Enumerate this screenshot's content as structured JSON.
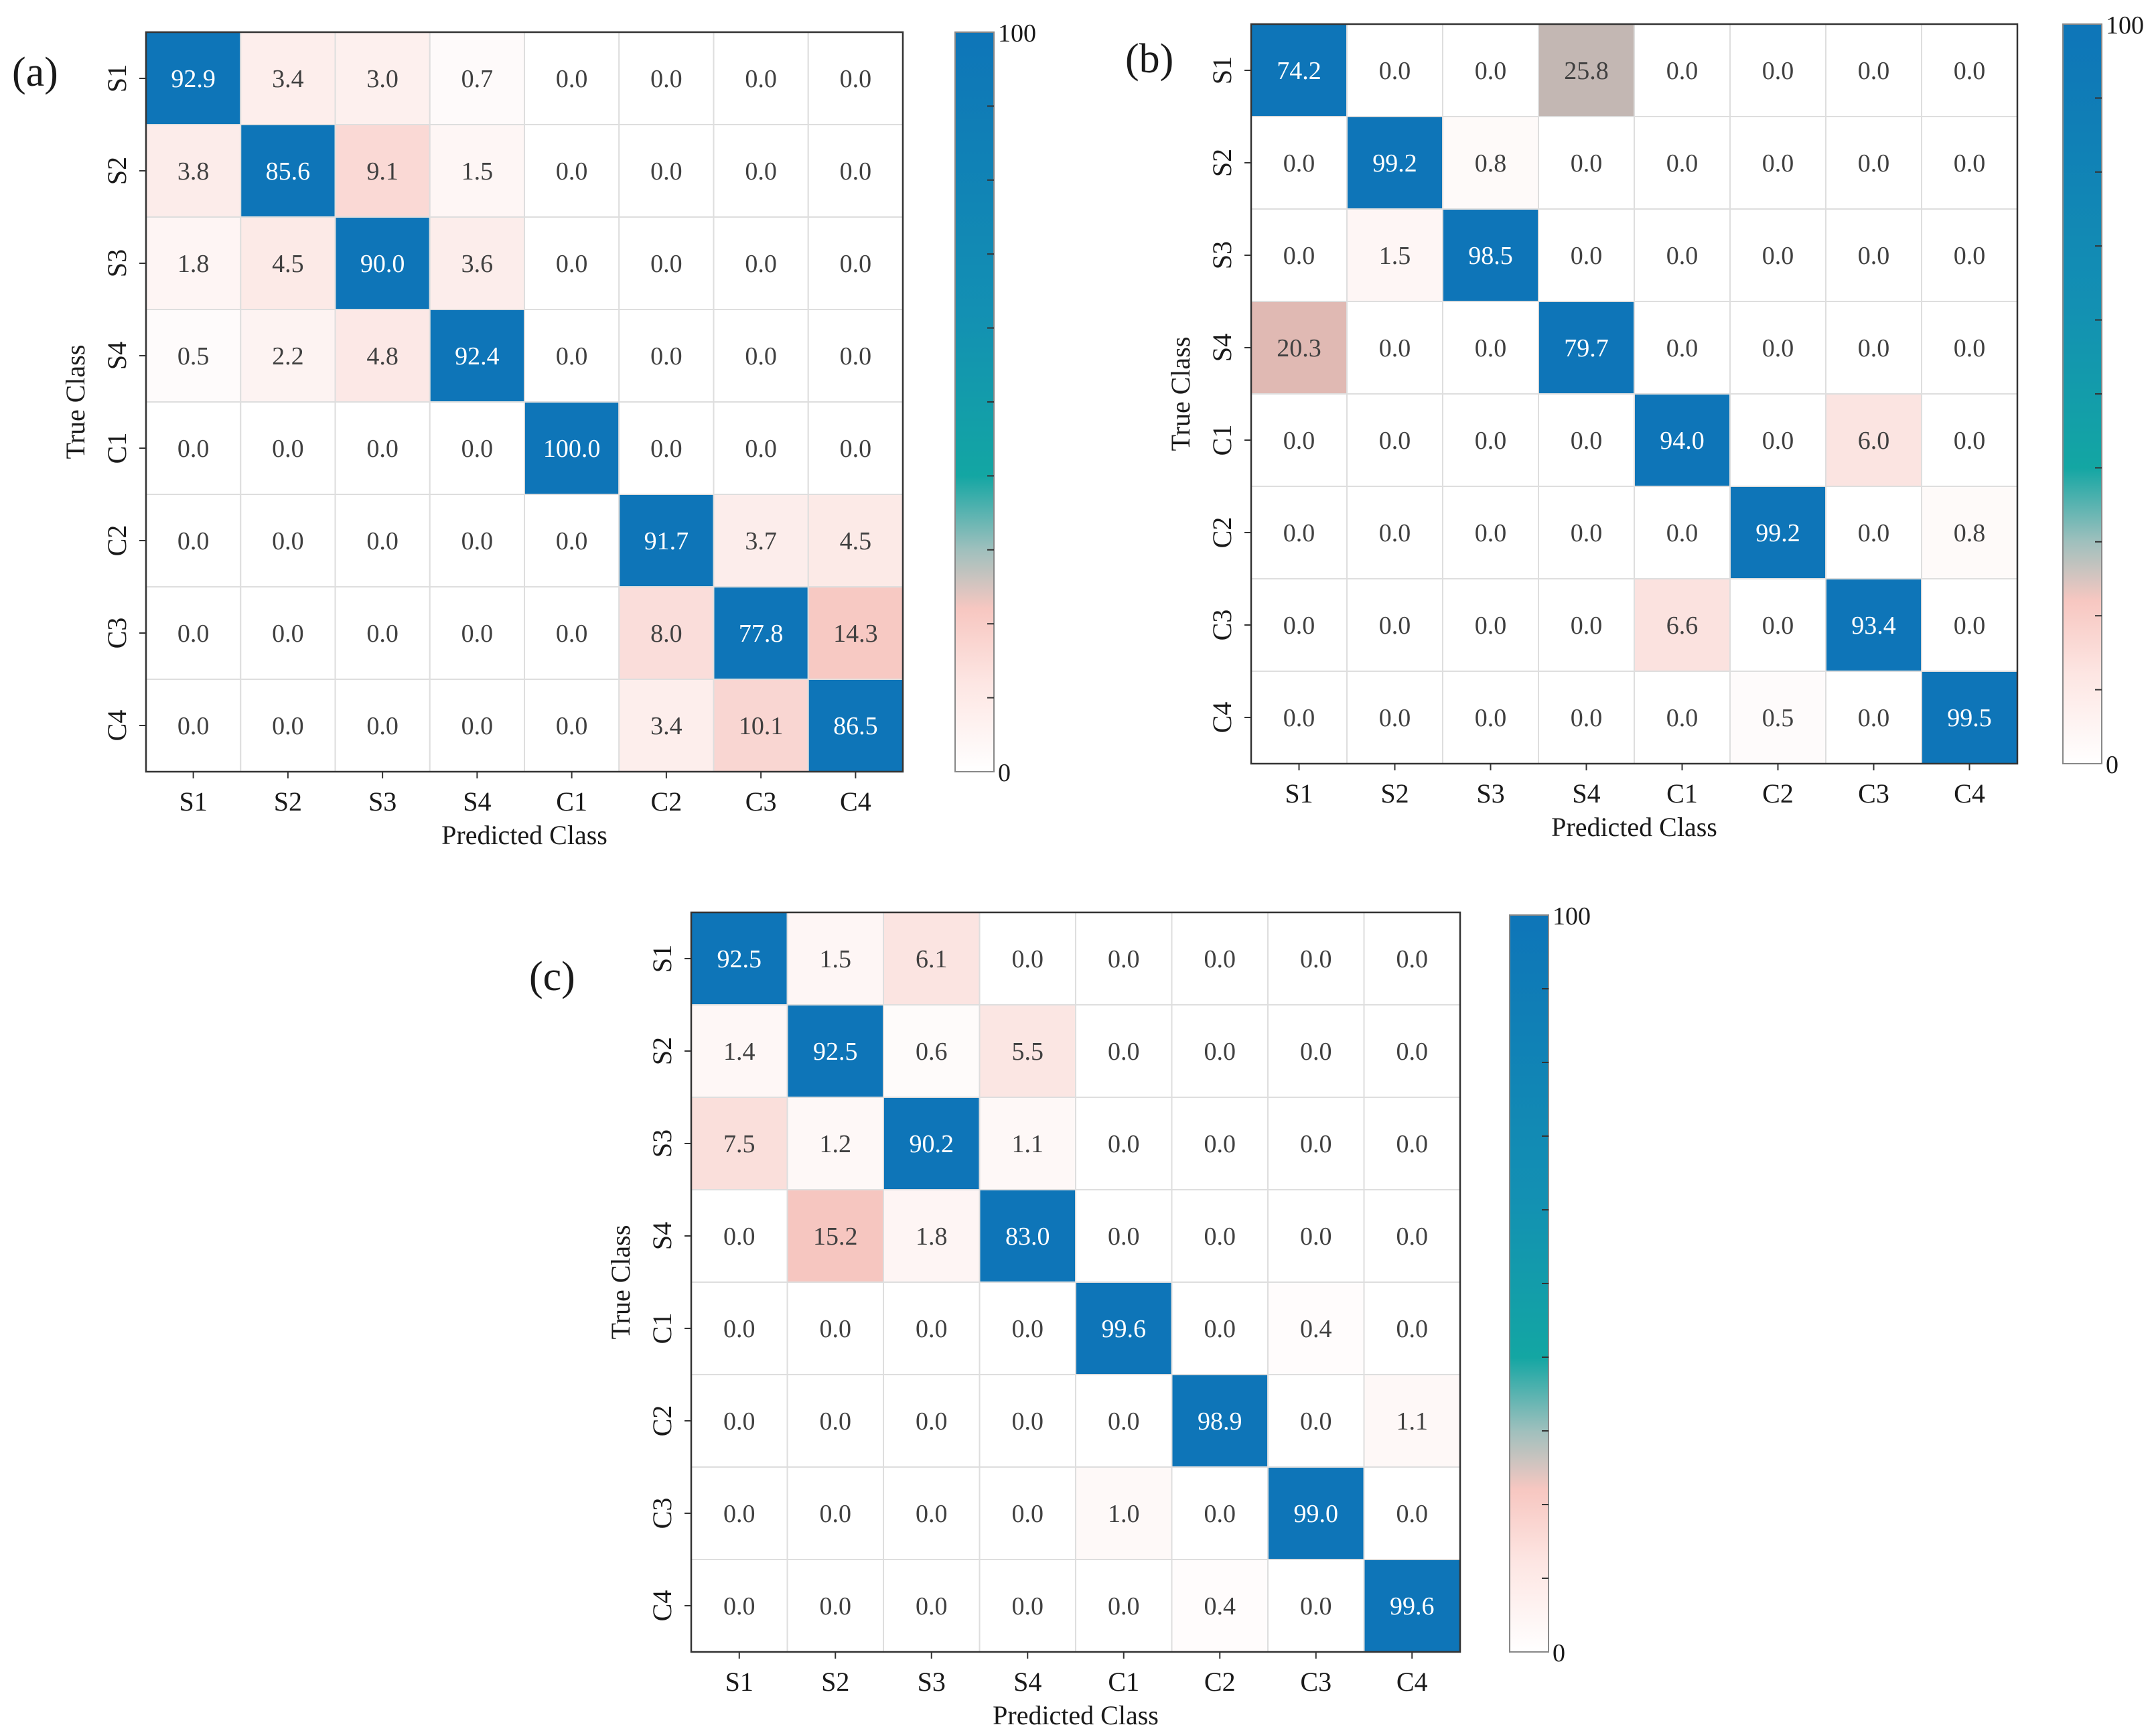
{
  "colors": {
    "high": "#0e75b8",
    "mid": "#13a6a3",
    "low_pink": "#f7c7c1",
    "zero": "#ffffff",
    "grid": "#dedede",
    "text_dark": "#404040",
    "text_light": "#ffffff"
  },
  "chart_data": [
    {
      "type": "heatmap",
      "panel_label": "(a)",
      "xlabel": "Predicted Class",
      "ylabel": "True Class",
      "x_categories": [
        "S1",
        "S2",
        "S3",
        "S4",
        "C1",
        "C2",
        "C3",
        "C4"
      ],
      "y_categories": [
        "S1",
        "S2",
        "S3",
        "S4",
        "C1",
        "C2",
        "C3",
        "C4"
      ],
      "value_range": [
        0,
        100
      ],
      "colorbar_ticks": [
        "0",
        "100"
      ],
      "values": [
        [
          "92.9",
          "3.4",
          "3.0",
          "0.7",
          "0.0",
          "0.0",
          "0.0",
          "0.0"
        ],
        [
          "3.8",
          "85.6",
          "9.1",
          "1.5",
          "0.0",
          "0.0",
          "0.0",
          "0.0"
        ],
        [
          "1.8",
          "4.5",
          "90.0",
          "3.6",
          "0.0",
          "0.0",
          "0.0",
          "0.0"
        ],
        [
          "0.5",
          "2.2",
          "4.8",
          "92.4",
          "0.0",
          "0.0",
          "0.0",
          "0.0"
        ],
        [
          "0.0",
          "0.0",
          "0.0",
          "0.0",
          "100.0",
          "0.0",
          "0.0",
          "0.0"
        ],
        [
          "0.0",
          "0.0",
          "0.0",
          "0.0",
          "0.0",
          "91.7",
          "3.7",
          "4.5"
        ],
        [
          "0.0",
          "0.0",
          "0.0",
          "0.0",
          "0.0",
          "8.0",
          "77.8",
          "14.3"
        ],
        [
          "0.0",
          "0.0",
          "0.0",
          "0.0",
          "0.0",
          "3.4",
          "10.1",
          "86.5"
        ]
      ]
    },
    {
      "type": "heatmap",
      "panel_label": "(b)",
      "xlabel": "Predicted Class",
      "ylabel": "True Class",
      "x_categories": [
        "S1",
        "S2",
        "S3",
        "S4",
        "C1",
        "C2",
        "C3",
        "C4"
      ],
      "y_categories": [
        "S1",
        "S2",
        "S3",
        "S4",
        "C1",
        "C2",
        "C3",
        "C4"
      ],
      "value_range": [
        0,
        100
      ],
      "colorbar_ticks": [
        "0",
        "100"
      ],
      "values": [
        [
          "74.2",
          "0.0",
          "0.0",
          "25.8",
          "0.0",
          "0.0",
          "0.0",
          "0.0"
        ],
        [
          "0.0",
          "99.2",
          "0.8",
          "0.0",
          "0.0",
          "0.0",
          "0.0",
          "0.0"
        ],
        [
          "0.0",
          "1.5",
          "98.5",
          "0.0",
          "0.0",
          "0.0",
          "0.0",
          "0.0"
        ],
        [
          "20.3",
          "0.0",
          "0.0",
          "79.7",
          "0.0",
          "0.0",
          "0.0",
          "0.0"
        ],
        [
          "0.0",
          "0.0",
          "0.0",
          "0.0",
          "94.0",
          "0.0",
          "6.0",
          "0.0"
        ],
        [
          "0.0",
          "0.0",
          "0.0",
          "0.0",
          "0.0",
          "99.2",
          "0.0",
          "0.8"
        ],
        [
          "0.0",
          "0.0",
          "0.0",
          "0.0",
          "6.6",
          "0.0",
          "93.4",
          "0.0"
        ],
        [
          "0.0",
          "0.0",
          "0.0",
          "0.0",
          "0.0",
          "0.5",
          "0.0",
          "99.5"
        ]
      ]
    },
    {
      "type": "heatmap",
      "panel_label": "(c)",
      "xlabel": "Predicted Class",
      "ylabel": "True Class",
      "x_categories": [
        "S1",
        "S2",
        "S3",
        "S4",
        "C1",
        "C2",
        "C3",
        "C4"
      ],
      "y_categories": [
        "S1",
        "S2",
        "S3",
        "S4",
        "C1",
        "C2",
        "C3",
        "C4"
      ],
      "value_range": [
        0,
        100
      ],
      "colorbar_ticks": [
        "0",
        "100"
      ],
      "values": [
        [
          "92.5",
          "1.5",
          "6.1",
          "0.0",
          "0.0",
          "0.0",
          "0.0",
          "0.0"
        ],
        [
          "1.4",
          "92.5",
          "0.6",
          "5.5",
          "0.0",
          "0.0",
          "0.0",
          "0.0"
        ],
        [
          "7.5",
          "1.2",
          "90.2",
          "1.1",
          "0.0",
          "0.0",
          "0.0",
          "0.0"
        ],
        [
          "0.0",
          "15.2",
          "1.8",
          "83.0",
          "0.0",
          "0.0",
          "0.0",
          "0.0"
        ],
        [
          "0.0",
          "0.0",
          "0.0",
          "0.0",
          "99.6",
          "0.0",
          "0.4",
          "0.0"
        ],
        [
          "0.0",
          "0.0",
          "0.0",
          "0.0",
          "0.0",
          "98.9",
          "0.0",
          "1.1"
        ],
        [
          "0.0",
          "0.0",
          "0.0",
          "0.0",
          "1.0",
          "0.0",
          "99.0",
          "0.0"
        ],
        [
          "0.0",
          "0.0",
          "0.0",
          "0.0",
          "0.0",
          "0.4",
          "0.0",
          "99.6"
        ]
      ]
    }
  ]
}
